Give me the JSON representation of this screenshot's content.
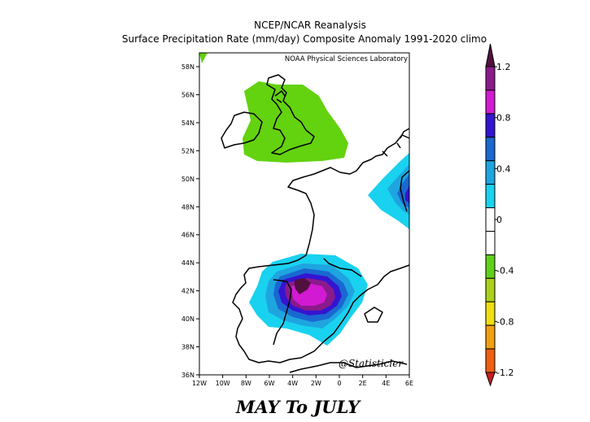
{
  "title_line1": "NCEP/NCAR Reanalysis",
  "title_line2": "Surface Precipitation Rate (mm/day) Composite Anomaly 1991-2020 climo",
  "credit": "NOAA Physical Sciences Laboratory",
  "watermark": "@Statisticler",
  "caption": "MAY To JULY",
  "lat_labels": [
    "58N",
    "56N",
    "54N",
    "52N",
    "50N",
    "48N",
    "46N",
    "44N",
    "42N",
    "40N",
    "38N",
    "36N"
  ],
  "lon_labels": [
    "12W",
    "10W",
    "8W",
    "6W",
    "4W",
    "2W",
    "0",
    "2E",
    "4E",
    "6E"
  ],
  "colorbar": {
    "labels": [
      "1.2",
      "0.8",
      "0.4",
      "0",
      "-0.4",
      "-0.8",
      "-1.2"
    ],
    "colors": [
      "#52103f",
      "#8b1a8c",
      "#d21ad2",
      "#3414d1",
      "#1a68d1",
      "#1ea5e0",
      "#19d2ef",
      "#ffffff",
      "#ffffff",
      "#5fd11a",
      "#aad11a",
      "#f0de10",
      "#f0a010",
      "#f06010",
      "#c81e1e"
    ]
  },
  "anomaly_colors": {
    "neg_0_2": "#63d20f",
    "pos_0_2": "#19d2ef",
    "pos_0_4": "#1ea5e0",
    "pos_0_6": "#1a68d1",
    "pos_0_8": "#3414d1",
    "pos_1_0": "#8b1a8c",
    "pos_1_1": "#d21ad2",
    "pos_1_2": "#52103f"
  }
}
